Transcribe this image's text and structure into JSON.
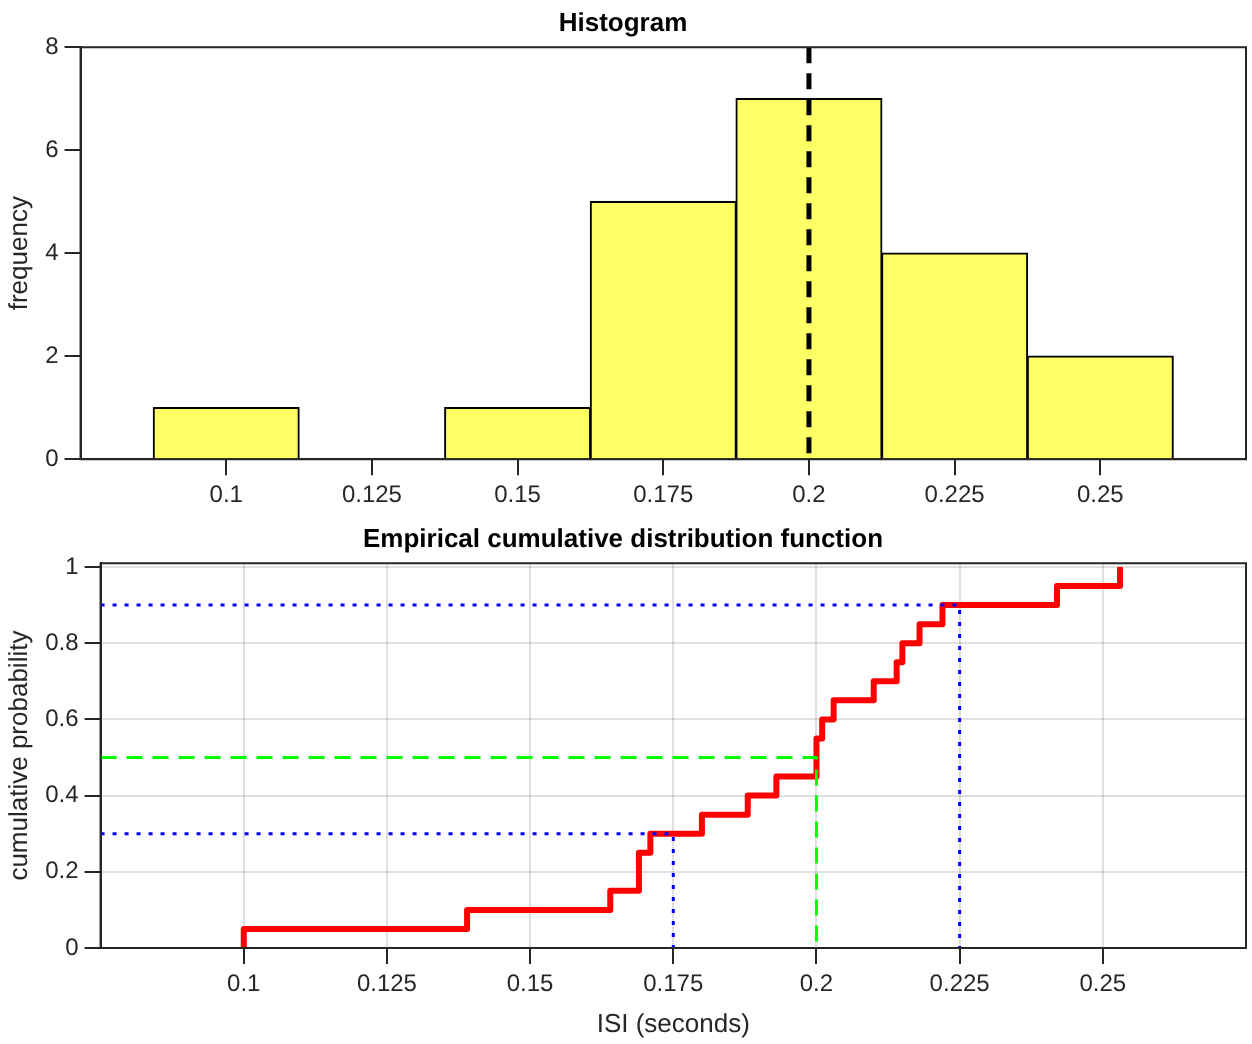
{
  "chart_data": [
    {
      "type": "histogram",
      "title": "Histogram",
      "ylabel": "frequency",
      "bins": [
        0.0875,
        0.1125,
        0.1375,
        0.1625,
        0.1875,
        0.2125,
        0.2375,
        0.2625
      ],
      "values": [
        1,
        0,
        1,
        5,
        7,
        4,
        2
      ],
      "color": "#ffff66",
      "xlim": [
        0.075,
        0.275
      ],
      "xticks": [
        0.1,
        0.125,
        0.15,
        0.175,
        0.2,
        0.225,
        0.25
      ],
      "ylim": [
        0,
        8
      ],
      "yticks": [
        0,
        2,
        4,
        6,
        8
      ],
      "ref_lines": [
        {
          "axis": "x",
          "value": 0.2,
          "color": "#000000",
          "line_style": "dashed"
        }
      ]
    },
    {
      "type": "step",
      "title": "Empirical cumulative distribution function",
      "xlabel": "ISI (seconds)",
      "ylabel": "cumulative probability",
      "xlim": [
        0.075,
        0.275
      ],
      "xticks": [
        0.1,
        0.125,
        0.15,
        0.175,
        0.2,
        0.225,
        0.25
      ],
      "ylim": [
        0,
        1.01
      ],
      "yticks": [
        0,
        0.2,
        0.4,
        0.6,
        0.8,
        1
      ],
      "grid": true,
      "series": [
        {
          "type": "line",
          "color": "#0000ff",
          "line_style": "dotted",
          "x": [
            0.075,
            0.225,
            0.225
          ],
          "values": [
            0.9,
            0.9,
            0
          ]
        },
        {
          "type": "line",
          "color": "#0000ff",
          "line_style": "dotted",
          "x": [
            0.075,
            0.175,
            0.175
          ],
          "values": [
            0.3,
            0.3,
            0
          ]
        },
        {
          "type": "line",
          "color": "#00ff00",
          "line_style": "dashed",
          "x": [
            0.075,
            0.2,
            0.2
          ],
          "values": [
            0.5,
            0.5,
            0
          ]
        },
        {
          "color": "#ff0000",
          "x": [
            0.1,
            0.1,
            0.139,
            0.164,
            0.169,
            0.169,
            0.171,
            0.18,
            0.188,
            0.193,
            0.2,
            0.201,
            0.203,
            0.21,
            0.214,
            0.215,
            0.218,
            0.222,
            0.242,
            0.253
          ],
          "values": [
            0,
            0.05,
            0.1,
            0.15,
            0.2,
            0.25,
            0.3,
            0.35,
            0.4,
            0.45,
            0.55,
            0.6,
            0.65,
            0.7,
            0.75,
            0.8,
            0.85,
            0.9,
            0.95,
            1
          ]
        }
      ]
    }
  ]
}
